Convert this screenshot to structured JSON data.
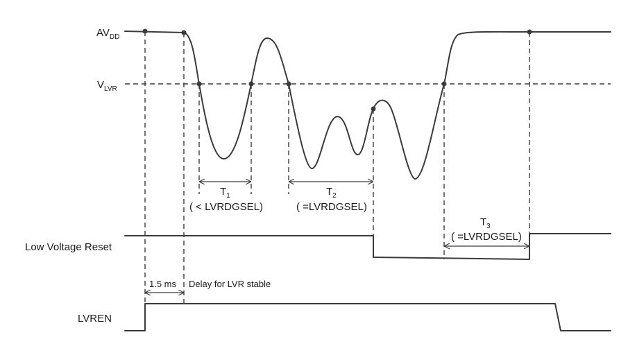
{
  "levels": {
    "avdd_main": "AV",
    "avdd_sub": "DD",
    "vlvr_main": "V",
    "vlvr_sub": "LVR"
  },
  "signals": {
    "lvr": "Low Voltage Reset",
    "lvren": "LVREN"
  },
  "intervals": {
    "t1_main": "T",
    "t1_sub": "1",
    "t1_note": "( < LVRDGSEL)",
    "t2_main": "T",
    "t2_sub": "2",
    "t2_note": "( =LVRDGSEL)",
    "t3_main": "T",
    "t3_sub": "3",
    "t3_note": "( =LVRDGSEL)"
  },
  "delay": {
    "value": "1.5 ms",
    "note": "Delay for LVR stable"
  }
}
